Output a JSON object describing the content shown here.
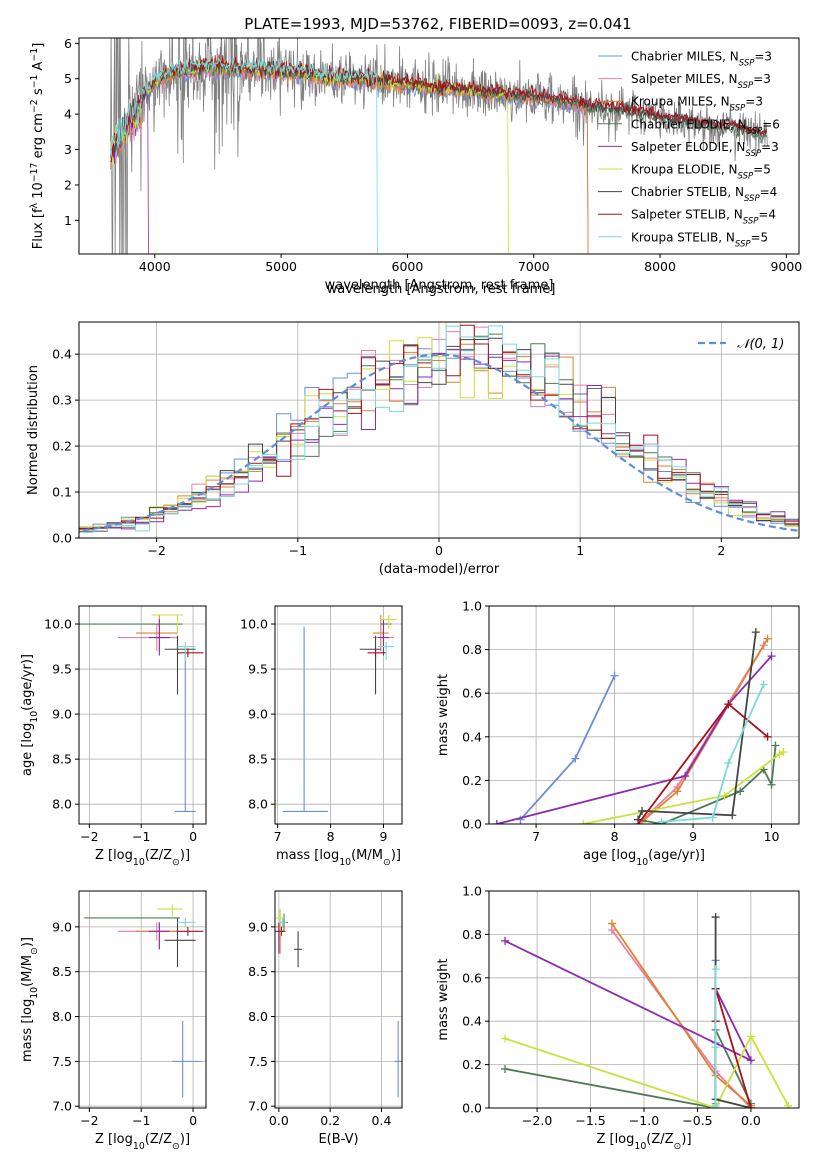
{
  "colors": {
    "Chabrier MILES": "#6a8fd8",
    "Salpeter MILES": "#e87fa8",
    "Kroupa MILES": "#e0822f",
    "Chabrier ELODIE": "#4f7a55",
    "Salpeter ELODIE": "#8e2ab0",
    "Kroupa ELODIE": "#c8e23a",
    "Chabrier STELIB": "#444444",
    "Salpeter STELIB": "#a8101a",
    "Kroupa STELIB": "#7adada",
    "data_spectrum": "#808080",
    "normal_curve": "#5b8fd9"
  },
  "chart_data": [
    {
      "type": "line",
      "title": "PLATE=1993, MJD=53762, FIBERID=0093, z=0.041",
      "xlabel": "wavelength [Angstrom, rest frame]",
      "ylabel": "Flux [f$_\\lambda$ 10$^{-17}$ erg cm$^{-2}$ s$^{-1}$ A$^{-1}$]",
      "ylabel_parts": [
        "Flux [f",
        "λ",
        " 10",
        "−17",
        " erg cm",
        "−2",
        " s",
        "−1",
        " A",
        "−1",
        "]"
      ],
      "xlim": [
        3400,
        9100
      ],
      "ylim": [
        0.05,
        6.15
      ],
      "xticks": [
        4000,
        5000,
        6000,
        7000,
        8000,
        9000
      ],
      "yticks": [
        1,
        2,
        3,
        4,
        5,
        6
      ],
      "legend_position": "upper right",
      "legend": [
        {
          "name": "Chabrier MILES",
          "nssp": 3
        },
        {
          "name": "Salpeter MILES",
          "nssp": 3
        },
        {
          "name": "Kroupa MILES",
          "nssp": 3
        },
        {
          "name": "Chabrier ELODIE",
          "nssp": 6
        },
        {
          "name": "Salpeter ELODIE",
          "nssp": 3
        },
        {
          "name": "Kroupa ELODIE",
          "nssp": 5
        },
        {
          "name": "Chabrier STELIB",
          "nssp": 4
        },
        {
          "name": "Salpeter STELIB",
          "nssp": 4
        },
        {
          "name": "Kroupa STELIB",
          "nssp": 5
        }
      ],
      "legend_prefix": "N",
      "legend_sub": "SSP",
      "continuum": {
        "x": [
          3650,
          3700,
          3800,
          3900,
          4000,
          4100,
          4200,
          4300,
          4400,
          4500,
          4600,
          4700,
          4800,
          4900,
          5000,
          5200,
          5400,
          5600,
          5800,
          6000,
          6200,
          6400,
          6600,
          6800,
          7000,
          7200,
          7400,
          7600,
          7800,
          8000,
          8200,
          8400,
          8600,
          8800
        ],
        "y": [
          3.3,
          3.6,
          4.2,
          4.5,
          4.9,
          5.1,
          5.2,
          5.25,
          5.3,
          5.3,
          5.3,
          5.25,
          5.25,
          5.2,
          5.2,
          5.15,
          5.0,
          5.0,
          4.9,
          4.85,
          4.75,
          4.7,
          4.6,
          4.55,
          4.5,
          4.4,
          4.25,
          4.15,
          4.05,
          3.9,
          3.8,
          3.65,
          3.6,
          3.4
        ]
      },
      "model_dropouts": [
        {
          "series": "Chabrier MILES",
          "x_start": 7430
        },
        {
          "series": "Kroupa MILES",
          "x_start": 7430
        },
        {
          "series": "Salpeter MILES",
          "x_start": 7430
        },
        {
          "series": "Kroupa ELODIE",
          "x_start": 6800
        },
        {
          "series": "Kroupa STELIB",
          "x_start": 5760
        },
        {
          "series": "Salpeter ELODIE",
          "x_start": 3950
        }
      ]
    },
    {
      "type": "line",
      "subtype": "step histogram",
      "xlabel": "(data-model)/error",
      "ylabel": "Normed distribution",
      "xlim": [
        -2.55,
        2.55
      ],
      "ylim": [
        0,
        0.47
      ],
      "xticks": [
        -2,
        -1,
        0,
        1,
        2
      ],
      "yticks": [
        0.0,
        0.1,
        0.2,
        0.3,
        0.4
      ],
      "grid": true,
      "legend_position": "upper right",
      "legend": [
        {
          "name": "𝒩(0, 1)",
          "style": "dashed"
        }
      ],
      "normal_mean": 0,
      "normal_sigma": 1,
      "bin_width": 0.1,
      "x_range": [
        -2.55,
        2.55
      ]
    },
    {
      "type": "scatter",
      "subtype": "errorbar",
      "xlabel": "Z [log10(Z/Z⊙)]",
      "xlabel_parts": [
        "Z [log",
        "10",
        "(Z/Z",
        "⊙",
        ")]"
      ],
      "ylabel": "age [log10(age/yr)]",
      "ylabel_parts": [
        "age  [log",
        "10",
        "(age/yr)]"
      ],
      "xlim": [
        -2.2,
        0.25
      ],
      "ylim": [
        7.78,
        10.2
      ],
      "xticks": [
        -2,
        -1,
        0
      ],
      "yticks": [
        8.0,
        8.5,
        9.0,
        9.5,
        10.0
      ],
      "grid": true,
      "points": [
        {
          "series": "Chabrier MILES",
          "x": -0.15,
          "y": 7.92,
          "xerr": [
            0.2,
            0.2
          ],
          "yerr": [
            0,
            1.8
          ]
        },
        {
          "series": "Salpeter MILES",
          "x": -0.7,
          "y": 9.85,
          "xerr": [
            0.75,
            0.4
          ],
          "yerr": [
            0.15,
            0.15
          ]
        },
        {
          "series": "Kroupa MILES",
          "x": -0.65,
          "y": 9.9,
          "xerr": [
            0.45,
            0.35
          ],
          "yerr": [
            0.2,
            0.2
          ]
        },
        {
          "series": "Chabrier ELODIE",
          "x": -1.0,
          "y": 10.0,
          "xerr": [
            1.2,
            0.8
          ],
          "yerr": [
            0,
            0
          ]
        },
        {
          "series": "Salpeter ELODIE",
          "x": -0.65,
          "y": 9.85,
          "xerr": [
            0.2,
            0.2
          ],
          "yerr": [
            0.2,
            0.2
          ]
        },
        {
          "series": "Kroupa ELODIE",
          "x": -0.5,
          "y": 10.1,
          "xerr": [
            0.3,
            0.3
          ],
          "yerr": [
            0.0,
            0.0
          ]
        },
        {
          "series": "Chabrier STELIB",
          "x": -0.3,
          "y": 9.72,
          "xerr": [
            0.25,
            0.35
          ],
          "yerr": [
            0.5,
            0.15
          ]
        },
        {
          "series": "Salpeter STELIB",
          "x": -0.1,
          "y": 9.68,
          "xerr": [
            0.2,
            0.3
          ],
          "yerr": [
            0.05,
            0.05
          ]
        },
        {
          "series": "Kroupa STELIB",
          "x": -0.15,
          "y": 9.75,
          "xerr": [
            0.15,
            0.2
          ],
          "yerr": [
            0.15,
            0.05
          ]
        },
        {
          "series": "Kroupa ELODIE",
          "x": -0.3,
          "y": 10.1,
          "xerr": [
            0,
            0
          ],
          "yerr": [
            0.2,
            0.0
          ]
        }
      ]
    },
    {
      "type": "scatter",
      "subtype": "errorbar",
      "xlabel": "mass [log10(M/M⊙)]",
      "xlabel_parts": [
        "mass [log",
        "10",
        "(M/M",
        "⊙",
        ")]"
      ],
      "xlim": [
        6.95,
        9.35
      ],
      "ylim": [
        7.78,
        10.2
      ],
      "xticks": [
        7,
        8,
        9
      ],
      "yticks": [
        8.0,
        8.5,
        9.0,
        9.5,
        10.0
      ],
      "grid": true,
      "points": [
        {
          "series": "Chabrier MILES",
          "x": 7.5,
          "y": 7.92,
          "xerr": [
            0.4,
            0.45
          ],
          "yerr": [
            0,
            2.05
          ]
        },
        {
          "series": "Salpeter MILES",
          "x": 9.0,
          "y": 9.85,
          "xerr": [
            0.2,
            0.2
          ],
          "yerr": [
            0.15,
            0.15
          ]
        },
        {
          "series": "Kroupa MILES",
          "x": 8.95,
          "y": 9.9,
          "xerr": [
            0.15,
            0.15
          ],
          "yerr": [
            0.2,
            0.2
          ]
        },
        {
          "series": "Chabrier ELODIE",
          "x": 9.05,
          "y": 10.0,
          "xerr": [
            0.1,
            0.1
          ],
          "yerr": [
            0.0,
            0.0
          ]
        },
        {
          "series": "Salpeter ELODIE",
          "x": 9.0,
          "y": 9.85,
          "xerr": [
            0.1,
            0.1
          ],
          "yerr": [
            0.2,
            0.2
          ]
        },
        {
          "series": "Kroupa ELODIE",
          "x": 9.1,
          "y": 10.05,
          "xerr": [
            0.15,
            0.15
          ],
          "yerr": [
            0.1,
            0.05
          ]
        },
        {
          "series": "Chabrier STELIB",
          "x": 8.85,
          "y": 9.72,
          "xerr": [
            0.3,
            0.1
          ],
          "yerr": [
            0.5,
            0.15
          ]
        },
        {
          "series": "Salpeter STELIB",
          "x": 8.85,
          "y": 9.68,
          "xerr": [
            0.15,
            0.2
          ],
          "yerr": [
            0.05,
            0.05
          ]
        },
        {
          "series": "Kroupa STELIB",
          "x": 9.05,
          "y": 9.75,
          "xerr": [
            0.15,
            0.15
          ],
          "yerr": [
            0.15,
            0.05
          ]
        }
      ]
    },
    {
      "type": "line",
      "xlabel": "age [log10(age/yr)]",
      "xlabel_parts": [
        "age  [log",
        "10",
        "(age/yr)]"
      ],
      "ylabel": "mass weight",
      "xlim": [
        6.4,
        10.35
      ],
      "ylim": [
        0,
        1.0
      ],
      "xticks": [
        7,
        8,
        9,
        10
      ],
      "yticks": [
        0.0,
        0.2,
        0.4,
        0.6,
        0.8,
        1.0
      ],
      "grid": true,
      "series": [
        {
          "name": "Chabrier MILES",
          "x": [
            6.8,
            7.5,
            8.0
          ],
          "y": [
            0.02,
            0.3,
            0.68
          ]
        },
        {
          "name": "Salpeter MILES",
          "x": [
            8.3,
            8.8,
            9.9
          ],
          "y": [
            0.0,
            0.17,
            0.82
          ]
        },
        {
          "name": "Kroupa MILES",
          "x": [
            8.35,
            8.8,
            9.95
          ],
          "y": [
            0.01,
            0.15,
            0.85
          ]
        },
        {
          "name": "Chabrier ELODIE",
          "x": [
            8.3,
            8.6,
            9.6,
            9.9,
            10.0,
            10.05
          ],
          "y": [
            0.02,
            0.0,
            0.15,
            0.25,
            0.18,
            0.36
          ]
        },
        {
          "name": "Salpeter ELODIE",
          "x": [
            6.5,
            8.9,
            9.45,
            10.0
          ],
          "y": [
            0.0,
            0.22,
            0.55,
            0.77
          ]
        },
        {
          "name": "Kroupa ELODIE",
          "x": [
            7.6,
            9.4,
            10.1,
            10.15
          ],
          "y": [
            0.0,
            0.13,
            0.32,
            0.33
          ]
        },
        {
          "name": "Chabrier STELIB",
          "x": [
            8.3,
            8.35,
            9.5,
            9.8
          ],
          "y": [
            0.02,
            0.06,
            0.04,
            0.88
          ]
        },
        {
          "name": "Salpeter STELIB",
          "x": [
            8.3,
            9.45,
            9.95
          ],
          "y": [
            0.0,
            0.55,
            0.4
          ]
        },
        {
          "name": "Kroupa STELIB",
          "x": [
            8.6,
            9.25,
            9.45,
            9.9
          ],
          "y": [
            0.01,
            0.03,
            0.28,
            0.64
          ]
        }
      ]
    },
    {
      "type": "scatter",
      "subtype": "errorbar",
      "xlabel": "Z [log10(Z/Z⊙)]",
      "xlabel_parts": [
        "Z [log",
        "10",
        "(Z/Z",
        "⊙",
        ")]"
      ],
      "ylabel": "mass [log10(M/M⊙)]",
      "ylabel_parts": [
        "mass [log",
        "10",
        "(M/M",
        "⊙",
        ")]"
      ],
      "xlim": [
        -2.2,
        0.25
      ],
      "ylim": [
        6.98,
        9.4
      ],
      "xticks": [
        -2,
        -1,
        0
      ],
      "yticks": [
        7.0,
        7.5,
        8.0,
        8.5,
        9.0
      ],
      "grid": true,
      "points": [
        {
          "series": "Chabrier MILES",
          "x": -0.2,
          "y": 7.5,
          "xerr": [
            0.2,
            0.35
          ],
          "yerr": [
            0.4,
            0.45
          ]
        },
        {
          "series": "Salpeter MILES",
          "x": -0.7,
          "y": 8.95,
          "xerr": [
            0.75,
            0.4
          ],
          "yerr": [
            0.1,
            0.1
          ]
        },
        {
          "series": "Kroupa MILES",
          "x": -0.65,
          "y": 8.95,
          "xerr": [
            0.45,
            0.35
          ],
          "yerr": [
            0.2,
            0.1
          ]
        },
        {
          "series": "Chabrier ELODIE",
          "x": -1.0,
          "y": 9.1,
          "xerr": [
            1.1,
            0.75
          ],
          "yerr": [
            0.0,
            0.0
          ]
        },
        {
          "series": "Salpeter ELODIE",
          "x": -0.65,
          "y": 8.95,
          "xerr": [
            0.2,
            0.2
          ],
          "yerr": [
            0.2,
            0.1
          ]
        },
        {
          "series": "Kroupa ELODIE",
          "x": -0.4,
          "y": 9.2,
          "xerr": [
            0.3,
            0.2
          ],
          "yerr": [
            0.1,
            0.05
          ]
        },
        {
          "series": "Chabrier STELIB",
          "x": -0.3,
          "y": 8.85,
          "xerr": [
            0.25,
            0.35
          ],
          "yerr": [
            0.3,
            0.25
          ]
        },
        {
          "series": "Salpeter STELIB",
          "x": -0.1,
          "y": 8.95,
          "xerr": [
            0.2,
            0.3
          ],
          "yerr": [
            0.05,
            0.05
          ]
        },
        {
          "series": "Kroupa STELIB",
          "x": -0.15,
          "y": 9.05,
          "xerr": [
            0.15,
            0.2
          ],
          "yerr": [
            0.05,
            0.05
          ]
        }
      ]
    },
    {
      "type": "scatter",
      "subtype": "errorbar",
      "xlabel": "E(B-V)",
      "xlim": [
        -0.015,
        0.48
      ],
      "ylim": [
        6.98,
        9.4
      ],
      "xticks": [
        0.0,
        0.2,
        0.4
      ],
      "yticks": [
        7.0,
        7.5,
        8.0,
        8.5,
        9.0
      ],
      "grid": true,
      "points": [
        {
          "series": "Chabrier MILES",
          "x": 0.465,
          "y": 7.5,
          "yerr": [
            0.4,
            0.45
          ]
        },
        {
          "series": "Salpeter MILES",
          "x": 0.0,
          "y": 8.95,
          "yerr": [
            0.1,
            0.1
          ]
        },
        {
          "series": "Kroupa MILES",
          "x": 0.005,
          "y": 9.0,
          "yerr": [
            0.3,
            0.2
          ]
        },
        {
          "series": "Chabrier ELODIE",
          "x": 0.02,
          "y": 9.05,
          "yerr": [
            0.1,
            0.1
          ]
        },
        {
          "series": "Salpeter ELODIE",
          "x": 0.0,
          "y": 8.95,
          "yerr": [
            0.25,
            0.1
          ]
        },
        {
          "series": "Kroupa ELODIE",
          "x": 0.005,
          "y": 9.1,
          "yerr": [
            0.2,
            0.1
          ]
        },
        {
          "series": "Chabrier STELIB",
          "x": 0.075,
          "y": 8.75,
          "yerr": [
            0.2,
            0.2
          ]
        },
        {
          "series": "Salpeter STELIB",
          "x": 0.01,
          "y": 8.95,
          "yerr": [
            0.05,
            0.05
          ]
        },
        {
          "series": "Kroupa STELIB",
          "x": 0.015,
          "y": 9.05,
          "yerr": [
            0.05,
            0.05
          ]
        }
      ]
    },
    {
      "type": "line",
      "xlabel": "Z [log10(Z/Z⊙)]",
      "xlabel_parts": [
        "Z [log",
        "10",
        "(Z/Z",
        "⊙",
        ")]"
      ],
      "ylabel": "mass weight",
      "xlim": [
        -2.45,
        0.45
      ],
      "ylim": [
        0,
        1.0
      ],
      "xticks": [
        -2.0,
        -1.5,
        -1.0,
        -0.5,
        0.0
      ],
      "yticks": [
        0.0,
        0.2,
        0.4,
        0.6,
        0.8,
        1.0
      ],
      "grid": true,
      "series": [
        {
          "name": "Chabrier MILES",
          "x": [
            -0.33,
            -0.33,
            -0.33
          ],
          "y": [
            0.02,
            0.3,
            0.68
          ]
        },
        {
          "name": "Salpeter MILES",
          "x": [
            -1.3,
            -0.33,
            0.0
          ],
          "y": [
            0.82,
            0.17,
            0.0
          ]
        },
        {
          "name": "Kroupa MILES",
          "x": [
            -1.3,
            -0.33,
            0.0
          ],
          "y": [
            0.85,
            0.15,
            0.01
          ]
        },
        {
          "name": "Chabrier ELODIE",
          "x": [
            -2.3,
            -0.33,
            -0.33,
            0.0
          ],
          "y": [
            0.18,
            0.0,
            0.36,
            0.02
          ]
        },
        {
          "name": "Salpeter ELODIE",
          "x": [
            -2.3,
            0.0,
            -0.33
          ],
          "y": [
            0.77,
            0.22,
            0.55
          ]
        },
        {
          "name": "Kroupa ELODIE",
          "x": [
            -2.3,
            -0.33,
            0.0,
            0.35
          ],
          "y": [
            0.32,
            0.0,
            0.33,
            0.01
          ]
        },
        {
          "name": "Chabrier STELIB",
          "x": [
            -0.33,
            -0.33,
            0.0
          ],
          "y": [
            0.88,
            0.04,
            0.0
          ]
        },
        {
          "name": "Salpeter STELIB",
          "x": [
            -0.33,
            -0.33,
            0.0
          ],
          "y": [
            0.4,
            0.55,
            0.0
          ]
        },
        {
          "name": "Kroupa STELIB",
          "x": [
            -0.33,
            -0.33,
            -0.33
          ],
          "y": [
            0.01,
            0.28,
            0.64
          ]
        }
      ]
    }
  ]
}
